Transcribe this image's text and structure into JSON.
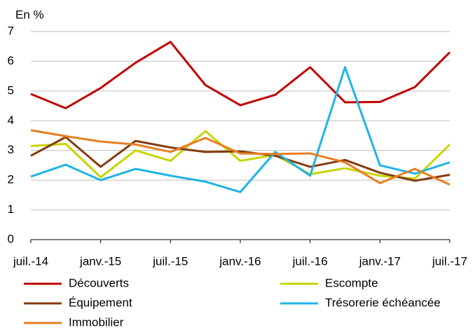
{
  "chart_data": {
    "type": "line",
    "y_label": "En %",
    "categories": [
      "juil.-14",
      null,
      "janv.-15",
      null,
      "juil.-15",
      null,
      "janv.-16",
      null,
      "juil.-16",
      null,
      "janv.-17",
      null,
      "juil.-17"
    ],
    "ylim": [
      0,
      7
    ],
    "yticks": [
      0,
      1,
      2,
      3,
      4,
      5,
      6,
      7
    ],
    "grid": true,
    "series": [
      {
        "name": "Découverts",
        "color": "#c00000",
        "values": [
          4.9,
          4.42,
          5.1,
          5.95,
          6.65,
          5.2,
          4.52,
          4.87,
          5.8,
          4.62,
          4.63,
          5.13,
          6.3
        ]
      },
      {
        "name": "Escompte",
        "color": "#c8d400",
        "values": [
          3.15,
          3.22,
          2.1,
          3.0,
          2.65,
          3.65,
          2.65,
          2.85,
          2.2,
          2.4,
          2.15,
          2.05,
          3.2
        ]
      },
      {
        "name": "Équipement",
        "color": "#843c0c",
        "values": [
          2.82,
          3.45,
          2.45,
          3.32,
          3.1,
          2.95,
          2.97,
          2.82,
          2.45,
          2.68,
          2.25,
          1.98,
          2.18
        ]
      },
      {
        "name": "Trésorerie échéancée",
        "color": "#1fb4e6",
        "values": [
          2.12,
          2.52,
          2.0,
          2.38,
          2.15,
          1.95,
          1.6,
          2.95,
          2.15,
          5.8,
          2.5,
          2.22,
          2.6
        ]
      },
      {
        "name": "Immobilier",
        "color": "#e67e22",
        "values": [
          3.68,
          3.48,
          3.3,
          3.2,
          2.95,
          3.42,
          2.9,
          2.88,
          2.9,
          2.6,
          1.9,
          2.38,
          1.85
        ]
      }
    ]
  }
}
